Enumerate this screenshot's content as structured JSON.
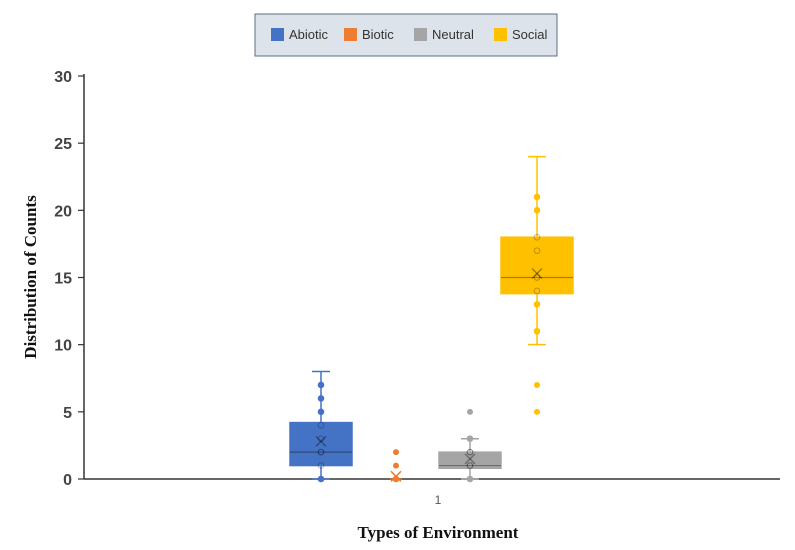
{
  "chart_data": {
    "type": "box",
    "title": "",
    "xlabel": "Types of Environment",
    "ylabel": "Distribution of Counts",
    "categories": [
      "1"
    ],
    "ylim": [
      0,
      30
    ],
    "yticks": [
      0,
      5,
      10,
      15,
      20,
      25,
      30
    ],
    "grid": false,
    "legend_position": "top-center",
    "series": [
      {
        "name": "Abiotic",
        "color": "#4472c4",
        "min": 0,
        "q1": 1,
        "median": 2,
        "q3": 4.2,
        "max": 8,
        "mean": 2.8,
        "points": [
          0,
          1,
          2,
          2,
          3,
          4,
          5,
          6,
          7
        ],
        "outliers": []
      },
      {
        "name": "Biotic",
        "color": "#ed7d31",
        "min": 0,
        "q1": 0,
        "median": 0,
        "q3": 0,
        "max": 0,
        "mean": 0.2,
        "points": [
          0
        ],
        "outliers": [
          1,
          2
        ]
      },
      {
        "name": "Neutral",
        "color": "#a5a5a5",
        "min": 0,
        "q1": 0.8,
        "median": 1,
        "q3": 2,
        "max": 3,
        "mean": 1.5,
        "points": [
          0,
          1,
          1,
          2,
          2,
          3
        ],
        "outliers": [
          5
        ]
      },
      {
        "name": "Social",
        "color": "#ffc000",
        "min": 10,
        "q1": 13.8,
        "median": 15,
        "q3": 18,
        "max": 24,
        "mean": 15.3,
        "points": [
          11,
          13,
          14,
          15,
          17,
          18,
          20,
          21
        ],
        "outliers": [
          5,
          7
        ]
      }
    ]
  }
}
